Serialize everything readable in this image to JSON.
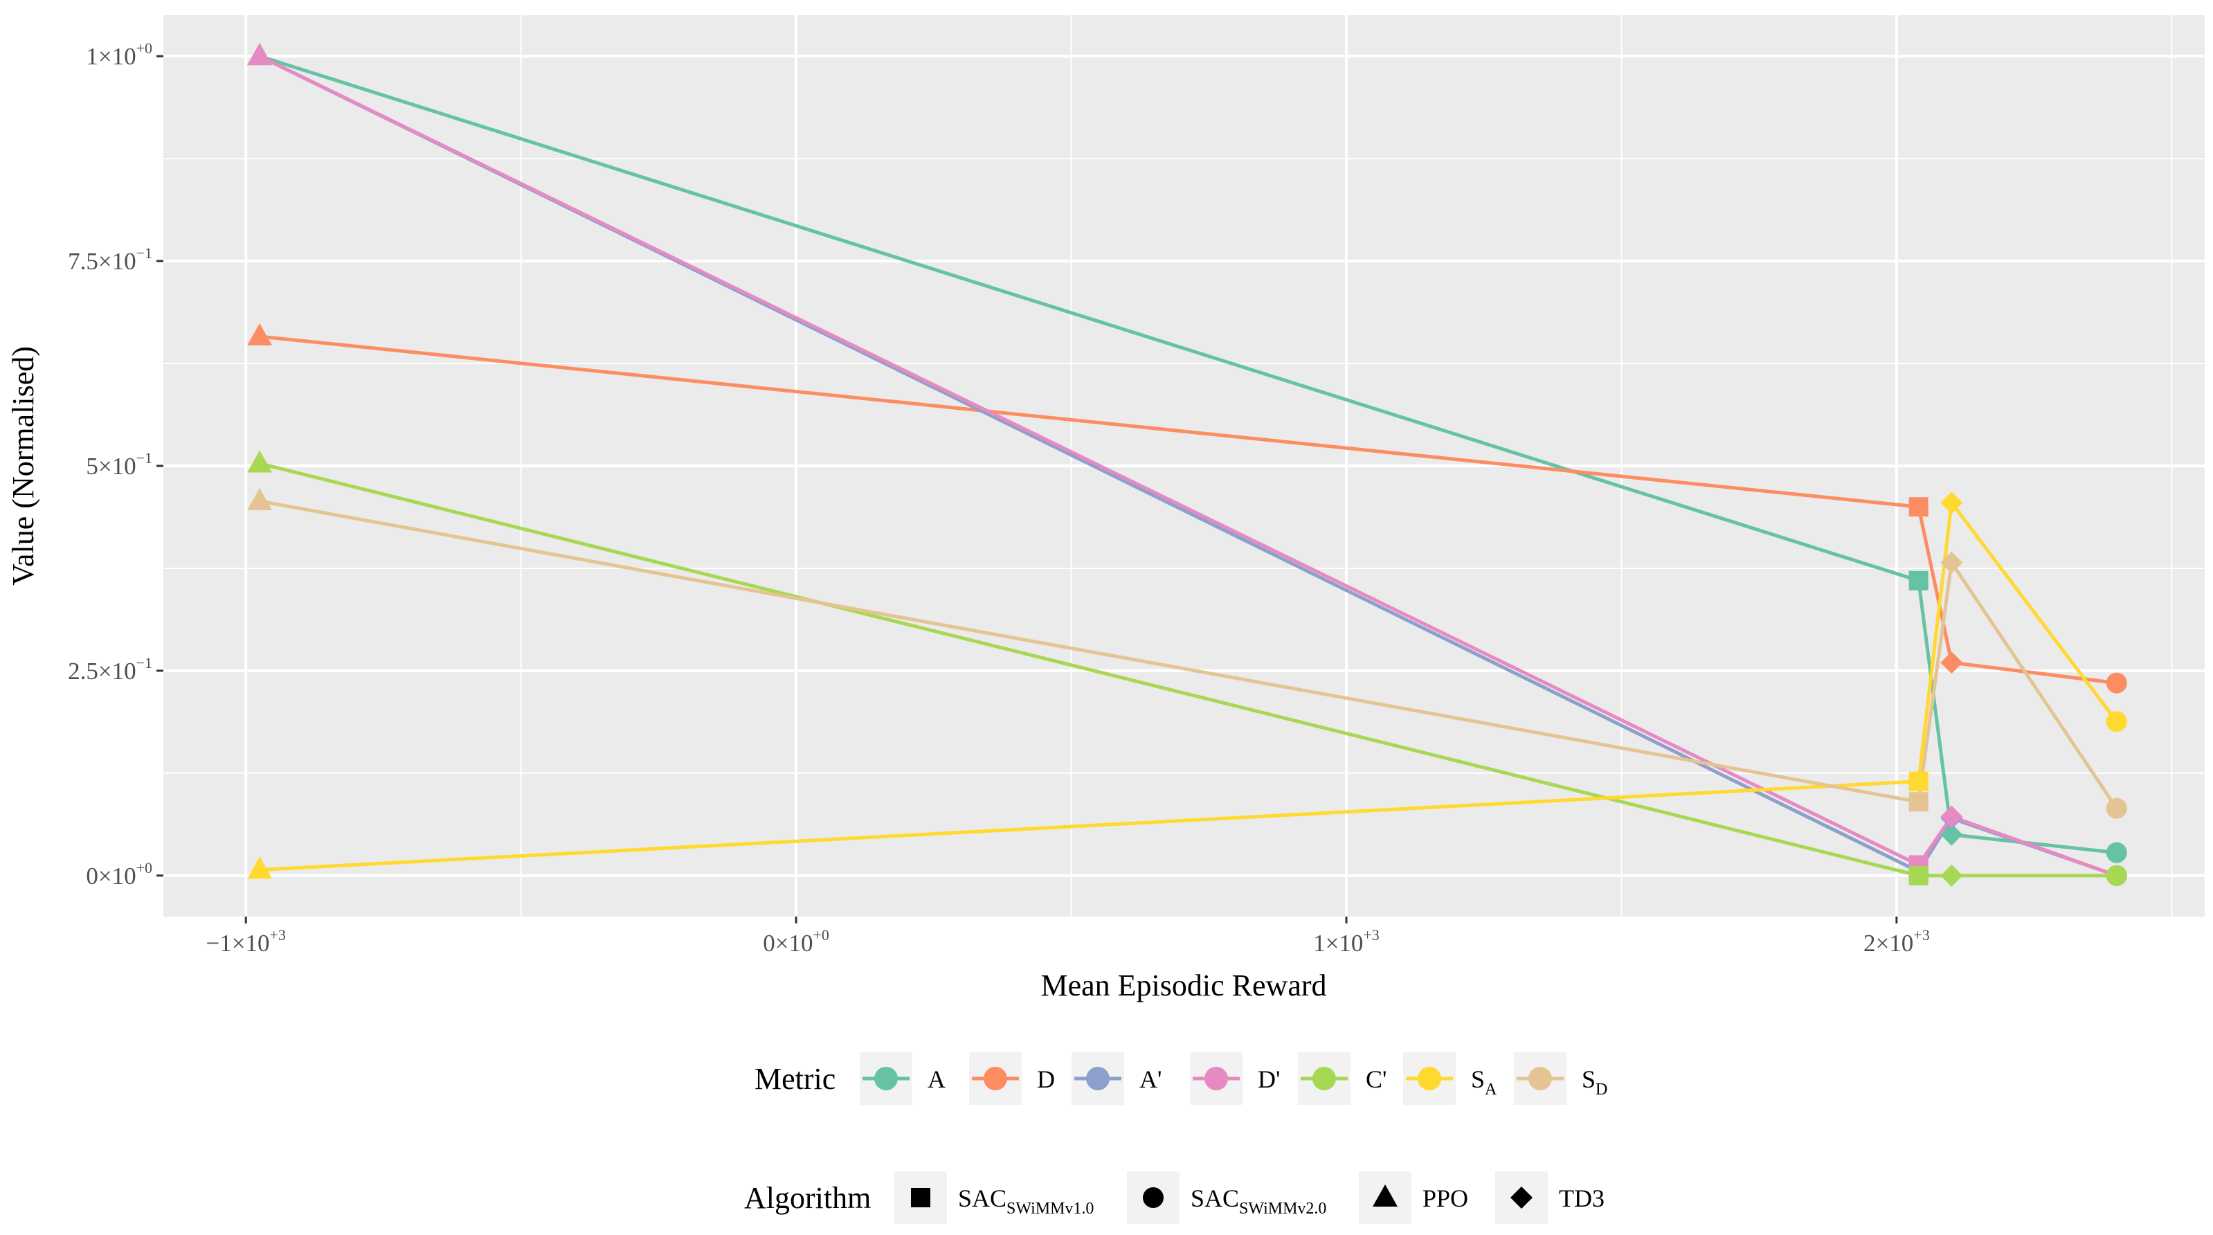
{
  "colors": {
    "A": "#66C2A5",
    "D": "#FC8D62",
    "A'": "#8DA0CB",
    "D'": "#E78AC3",
    "C'": "#A6D854",
    "S_A": "#FFD92F",
    "S_D": "#E5C494",
    "panel": "#EBEBEB",
    "grid": "#FFFFFF",
    "text": "#000000",
    "tick_text": "#4D4D4D"
  },
  "chart_data": {
    "type": "line",
    "xlabel": "Mean Episodic Reward",
    "ylabel": "Value (Normalised)",
    "xlim": [
      -1150,
      2560
    ],
    "ylim": [
      -0.05,
      1.05
    ],
    "x_ticks": [
      {
        "value": -1000,
        "mant": "−1×10",
        "exp": "+3"
      },
      {
        "value": 0,
        "mant": "0×10",
        "exp": "+0"
      },
      {
        "value": 1000,
        "mant": "1×10",
        "exp": "+3"
      },
      {
        "value": 2000,
        "mant": "2×10",
        "exp": "+3"
      }
    ],
    "x_minor": [
      -500,
      500,
      1500,
      2500
    ],
    "y_ticks": [
      {
        "value": 0,
        "mant": "0×10",
        "exp": "+0"
      },
      {
        "value": 0.25,
        "mant": "2.5×10",
        "exp": "−1"
      },
      {
        "value": 0.5,
        "mant": "5×10",
        "exp": "−1"
      },
      {
        "value": 0.75,
        "mant": "7.5×10",
        "exp": "−1"
      },
      {
        "value": 1.0,
        "mant": "1×10",
        "exp": "+0"
      }
    ],
    "y_minor": [
      0.125,
      0.375,
      0.625,
      0.875
    ],
    "x": [
      -975,
      2040,
      2100,
      2400
    ],
    "point_algorithms": [
      "PPO",
      "SAC_SWiMMv1.0",
      "TD3",
      "SAC_SWiMMv2.0"
    ],
    "series": [
      {
        "key": "A",
        "name": "A",
        "values": [
          1.0,
          0.36,
          0.05,
          0.028
        ]
      },
      {
        "key": "D",
        "name": "D",
        "values": [
          0.658,
          0.45,
          0.26,
          0.235
        ]
      },
      {
        "key": "A'",
        "name": "A'",
        "values": [
          1.0,
          0.005,
          0.07,
          0.0
        ]
      },
      {
        "key": "D'",
        "name": "D'",
        "values": [
          1.0,
          0.013,
          0.072,
          0.0
        ]
      },
      {
        "key": "C'",
        "name": "C'",
        "values": [
          0.503,
          0.0,
          0.0,
          0.0
        ]
      },
      {
        "key": "S_A",
        "name": "S",
        "sub": "A",
        "values": [
          0.007,
          0.115,
          0.455,
          0.188
        ]
      },
      {
        "key": "S_D",
        "name": "S",
        "sub": "D",
        "values": [
          0.457,
          0.09,
          0.382,
          0.082
        ]
      }
    ],
    "legend_metric": {
      "title": "Metric",
      "entries": [
        {
          "key": "A",
          "label": "A",
          "sub": ""
        },
        {
          "key": "D",
          "label": "D",
          "sub": ""
        },
        {
          "key": "A'",
          "label": "A'",
          "sub": ""
        },
        {
          "key": "D'",
          "label": "D'",
          "sub": ""
        },
        {
          "key": "C'",
          "label": "C'",
          "sub": ""
        },
        {
          "key": "S_A",
          "label": "S",
          "sub": "A"
        },
        {
          "key": "S_D",
          "label": "S",
          "sub": "D"
        }
      ]
    },
    "legend_algorithm": {
      "title": "Algorithm",
      "entries": [
        {
          "shape": "square",
          "label": "SAC",
          "sub": "SWiMMv1.0"
        },
        {
          "shape": "circle",
          "label": "SAC",
          "sub": "SWiMMv2.0"
        },
        {
          "shape": "triangle",
          "label": "PPO",
          "sub": ""
        },
        {
          "shape": "diamond",
          "label": "TD3",
          "sub": ""
        }
      ]
    }
  }
}
